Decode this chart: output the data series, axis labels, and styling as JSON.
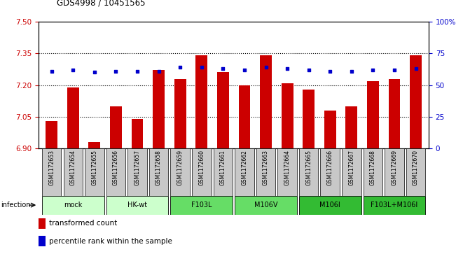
{
  "title": "GDS4998 / 10451565",
  "samples": [
    "GSM1172653",
    "GSM1172654",
    "GSM1172655",
    "GSM1172656",
    "GSM1172657",
    "GSM1172658",
    "GSM1172659",
    "GSM1172660",
    "GSM1172661",
    "GSM1172662",
    "GSM1172663",
    "GSM1172664",
    "GSM1172665",
    "GSM1172666",
    "GSM1172667",
    "GSM1172668",
    "GSM1172669",
    "GSM1172670"
  ],
  "bar_values": [
    7.03,
    7.19,
    6.93,
    7.1,
    7.04,
    7.27,
    7.23,
    7.34,
    7.26,
    7.2,
    7.34,
    7.21,
    7.18,
    7.08,
    7.1,
    7.22,
    7.23,
    7.34
  ],
  "percentile_values": [
    61,
    62,
    60,
    61,
    61,
    61,
    64,
    64,
    63,
    62,
    64,
    63,
    62,
    61,
    61,
    62,
    62,
    63
  ],
  "ylim_left": [
    6.9,
    7.5
  ],
  "ylim_right": [
    0,
    100
  ],
  "yticks_left": [
    6.9,
    7.05,
    7.2,
    7.35,
    7.5
  ],
  "yticks_right": [
    0,
    25,
    50,
    75,
    100
  ],
  "bar_color": "#cc0000",
  "dot_color": "#0000cc",
  "groups": [
    {
      "label": "mock",
      "start": 0,
      "end": 2,
      "color": "#ccffcc"
    },
    {
      "label": "HK-wt",
      "start": 3,
      "end": 5,
      "color": "#ccffcc"
    },
    {
      "label": "F103L",
      "start": 6,
      "end": 8,
      "color": "#66dd66"
    },
    {
      "label": "M106V",
      "start": 9,
      "end": 11,
      "color": "#66dd66"
    },
    {
      "label": "M106I",
      "start": 12,
      "end": 14,
      "color": "#33bb33"
    },
    {
      "label": "F103L+M106I",
      "start": 15,
      "end": 17,
      "color": "#33bb33"
    }
  ],
  "legend_bar_label": "transformed count",
  "legend_dot_label": "percentile rank within the sample",
  "xlabel_group": "infection",
  "background_color": "#ffffff",
  "tick_label_color_left": "#cc0000",
  "tick_label_color_right": "#0000cc",
  "sample_box_color": "#c8c8c8"
}
